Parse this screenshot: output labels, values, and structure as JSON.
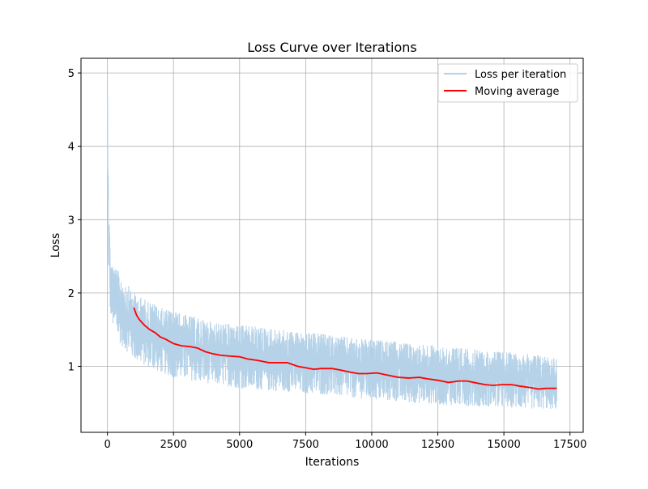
{
  "chart_data": {
    "type": "line",
    "title": "Loss Curve over Iterations",
    "xlabel": "Iterations",
    "ylabel": "Loss",
    "xlim": [
      -1000,
      18000
    ],
    "ylim": [
      0.1,
      5.2
    ],
    "xticks": [
      0,
      2500,
      5000,
      7500,
      10000,
      12500,
      15000,
      17500
    ],
    "yticks": [
      1,
      2,
      3,
      4,
      5
    ],
    "grid": true,
    "legend_position": "top-right",
    "series": [
      {
        "name": "Loss per iteration",
        "color": "#b5d2e8",
        "style": "noisy-band",
        "x": [
          0,
          20,
          50,
          100,
          150,
          200,
          300,
          400,
          500,
          600,
          800,
          1000,
          1200,
          1500,
          1800,
          2000,
          2500,
          3000,
          3500,
          4000,
          4500,
          5000,
          5500,
          6000,
          6500,
          7000,
          7500,
          8000,
          8500,
          9000,
          9500,
          10000,
          10500,
          11000,
          11500,
          12000,
          12500,
          13000,
          13500,
          14000,
          14500,
          15000,
          15500,
          16000,
          16500,
          17000
        ],
        "y_lower": [
          3.6,
          2.8,
          2.0,
          1.75,
          1.65,
          1.55,
          1.45,
          1.38,
          1.3,
          1.25,
          1.18,
          1.1,
          1.05,
          1.0,
          0.95,
          0.92,
          0.85,
          0.82,
          0.78,
          0.76,
          0.73,
          0.7,
          0.69,
          0.67,
          0.66,
          0.65,
          0.63,
          0.62,
          0.6,
          0.58,
          0.56,
          0.55,
          0.53,
          0.52,
          0.5,
          0.5,
          0.48,
          0.47,
          0.46,
          0.45,
          0.45,
          0.44,
          0.43,
          0.42,
          0.42,
          0.41
        ],
        "y_upper": [
          4.95,
          4.6,
          3.4,
          2.65,
          2.45,
          2.4,
          2.35,
          2.3,
          2.25,
          2.2,
          2.1,
          2.0,
          1.95,
          1.9,
          1.85,
          1.8,
          1.75,
          1.7,
          1.65,
          1.6,
          1.58,
          1.56,
          1.55,
          1.52,
          1.5,
          1.48,
          1.45,
          1.45,
          1.42,
          1.4,
          1.38,
          1.36,
          1.35,
          1.33,
          1.3,
          1.3,
          1.28,
          1.26,
          1.25,
          1.22,
          1.2,
          1.2,
          1.18,
          1.17,
          1.15,
          1.12
        ]
      },
      {
        "name": "Moving average",
        "color": "#ff0000",
        "x": [
          1000,
          1100,
          1200,
          1400,
          1600,
          1800,
          2000,
          2200,
          2500,
          2800,
          3100,
          3400,
          3700,
          4000,
          4300,
          4600,
          5000,
          5300,
          5700,
          6100,
          6400,
          6800,
          7200,
          7500,
          7800,
          8100,
          8500,
          8800,
          9200,
          9500,
          9800,
          10200,
          10600,
          11000,
          11400,
          11800,
          12100,
          12500,
          12900,
          13300,
          13600,
          14000,
          14300,
          14600,
          14900,
          15300,
          15600,
          16000,
          16300,
          16600,
          17000
        ],
        "y": [
          1.8,
          1.7,
          1.64,
          1.56,
          1.5,
          1.46,
          1.4,
          1.37,
          1.31,
          1.28,
          1.27,
          1.25,
          1.2,
          1.17,
          1.15,
          1.14,
          1.13,
          1.1,
          1.08,
          1.05,
          1.05,
          1.05,
          1.0,
          0.98,
          0.96,
          0.97,
          0.97,
          0.95,
          0.92,
          0.9,
          0.9,
          0.91,
          0.88,
          0.85,
          0.84,
          0.85,
          0.83,
          0.81,
          0.78,
          0.8,
          0.8,
          0.77,
          0.75,
          0.74,
          0.75,
          0.75,
          0.73,
          0.71,
          0.69,
          0.7,
          0.7
        ]
      }
    ]
  }
}
